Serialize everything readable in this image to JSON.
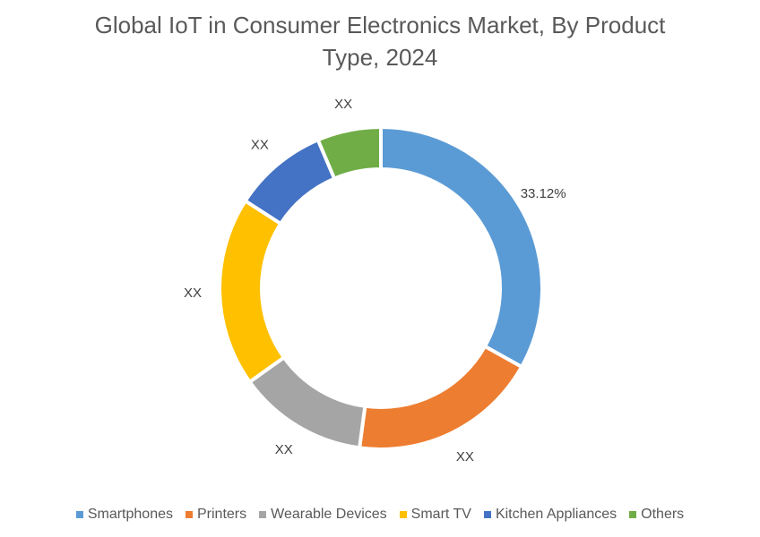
{
  "chart_data": {
    "type": "pie",
    "subtype": "donut",
    "title": "Global IoT in Consumer Electronics Market, By Product Type, 2024",
    "title_lines": [
      "Global IoT in Consumer Electronics Market, By Product",
      "Type, 2024"
    ],
    "categories": [
      "Smartphones",
      "Printers",
      "Wearable Devices",
      "Smart TV",
      "Kitchen Appliances",
      "Others"
    ],
    "values": [
      33.12,
      19.0,
      13.0,
      19.0,
      9.5,
      6.38
    ],
    "data_labels": [
      "33.12%",
      "XX",
      "XX",
      "XX",
      "XX",
      "XX"
    ],
    "colors": [
      "#5B9BD5",
      "#ED7D31",
      "#A5A5A5",
      "#FFC000",
      "#4472C4",
      "#70AD47"
    ],
    "legend_position": "bottom"
  }
}
